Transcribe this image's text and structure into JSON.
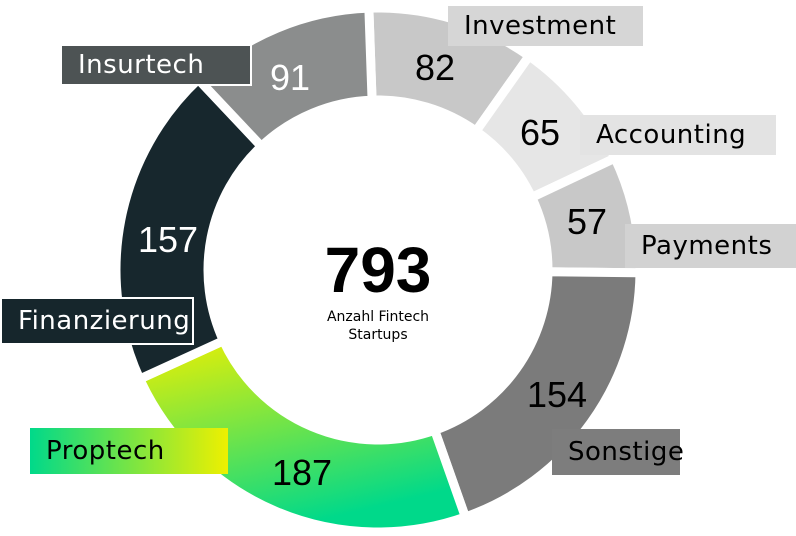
{
  "chart_data": {
    "type": "donut",
    "total": 793,
    "subtitle": "Anzahl Fintech Startups",
    "categories": [
      "Investment",
      "Accounting",
      "Payments",
      "Sonstige",
      "Proptech",
      "Finanzierung",
      "Insurtech"
    ],
    "values": [
      82,
      65,
      57,
      154,
      187,
      157,
      91
    ],
    "colors": [
      "#c8c8c8",
      "#e6e6e6",
      "#c8c8c8",
      "#7b7b7b",
      "#eef000",
      "#17272d",
      "#8b8d8d"
    ]
  }
}
